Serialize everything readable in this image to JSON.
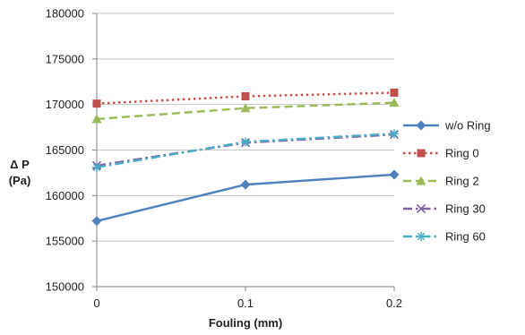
{
  "chart_data": {
    "type": "line",
    "x": [
      "0",
      "0.1",
      "0.2"
    ],
    "xlabel": "Fouling (mm)",
    "ylabel": [
      "Δ P",
      "(Pa)"
    ],
    "ylim": [
      150000,
      180000
    ],
    "yticks": [
      150000,
      155000,
      160000,
      165000,
      170000,
      175000,
      180000
    ],
    "grid": "horizontal",
    "legend_position": "right",
    "series": [
      {
        "name": "w/o Ring",
        "values": [
          157200,
          161200,
          162300
        ],
        "color": "#4f81bd",
        "marker": "diamond",
        "dash": "solid"
      },
      {
        "name": "Ring 0",
        "values": [
          170100,
          170900,
          171300
        ],
        "color": "#c0504d",
        "marker": "square",
        "dash": "dot"
      },
      {
        "name": "Ring 2",
        "values": [
          168400,
          169600,
          170200
        ],
        "color": "#9bbb59",
        "marker": "triangle",
        "dash": "dash"
      },
      {
        "name": "Ring 30",
        "values": [
          163300,
          165800,
          166700
        ],
        "color": "#8064a2",
        "marker": "x",
        "dash": "dashdot"
      },
      {
        "name": "Ring 60",
        "values": [
          163100,
          165900,
          166800
        ],
        "color": "#4bacc6",
        "marker": "star",
        "dash": "dashdot"
      }
    ]
  }
}
